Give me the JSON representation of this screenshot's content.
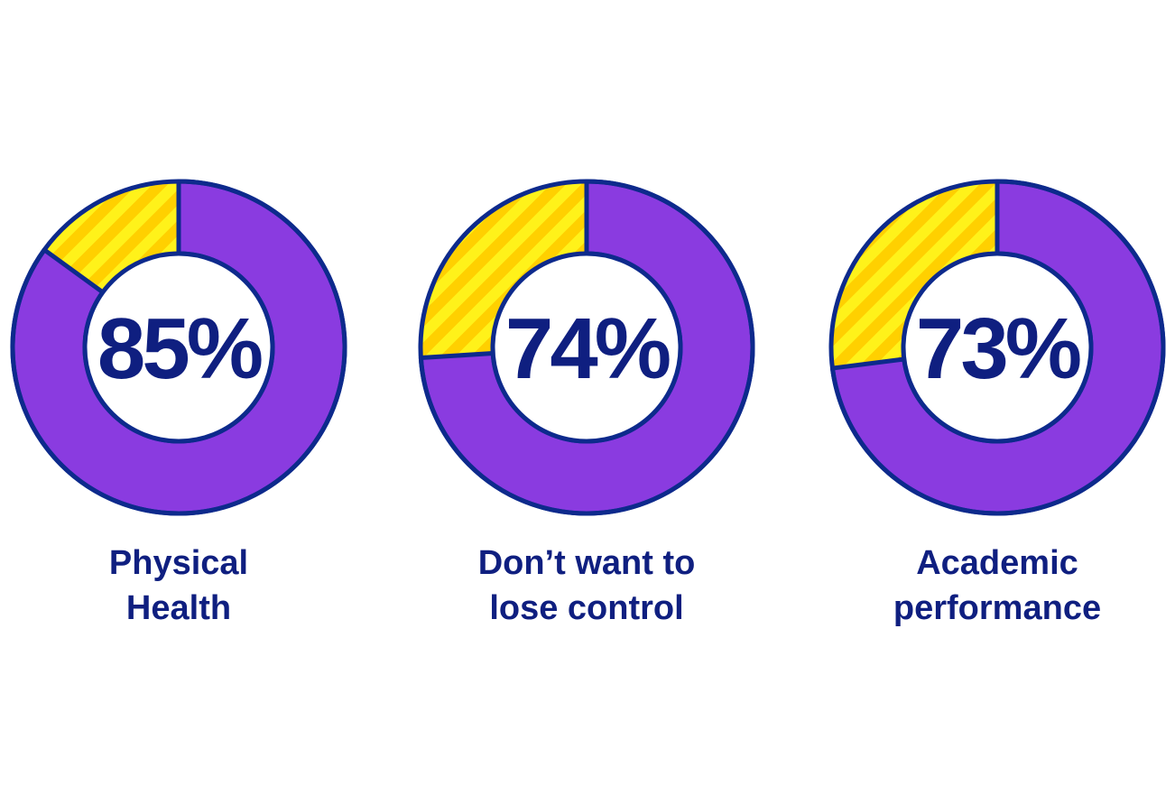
{
  "chart_data": [
    {
      "type": "donut",
      "label_lines": [
        "Physical",
        "Health"
      ],
      "values": [
        85
      ],
      "value_labels": [
        "85%"
      ],
      "color": "#8a3be0"
    },
    {
      "type": "donut",
      "label_lines": [
        "Don’t want to",
        "lose control"
      ],
      "values": [
        74
      ],
      "value_labels": [
        "74%"
      ],
      "color": "#8a3be0"
    },
    {
      "type": "donut",
      "label_lines": [
        "Academic",
        "performance"
      ],
      "values": [
        73
      ],
      "value_labels": [
        "73%"
      ],
      "color": "#8a3be0"
    }
  ]
}
